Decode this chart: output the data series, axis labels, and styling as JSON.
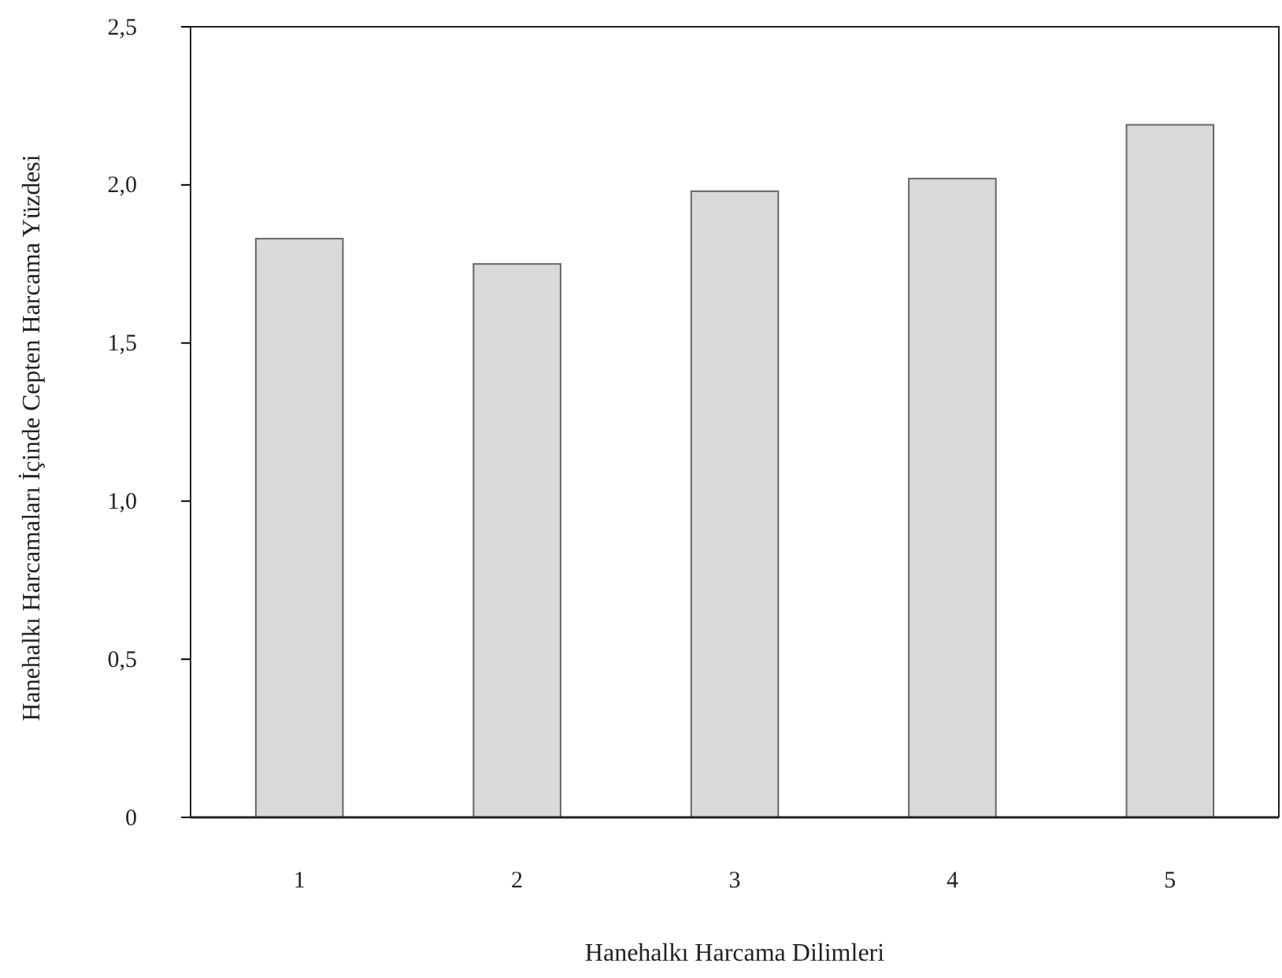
{
  "chart_data": {
    "type": "bar",
    "xlabel": "Hanehalkı Harcama Dilimleri",
    "ylabel": "Hanehalkı Harcamaları İçinde Cepten Harcama Yüzdesi",
    "categories": [
      "1",
      "2",
      "3",
      "4",
      "5"
    ],
    "values": [
      1.83,
      1.75,
      1.98,
      2.02,
      2.19
    ],
    "color": "#d9d9d9",
    "ylim": [
      0,
      2.5
    ],
    "yticks": [
      {
        "value": 0,
        "label": "0"
      },
      {
        "value": 0.5,
        "label": "0,5"
      },
      {
        "value": 1,
        "label": "1,0"
      },
      {
        "value": 1.5,
        "label": "1,5"
      },
      {
        "value": 2,
        "label": "2,0"
      },
      {
        "value": 2.5,
        "label": "2,5"
      }
    ],
    "grid": false
  }
}
